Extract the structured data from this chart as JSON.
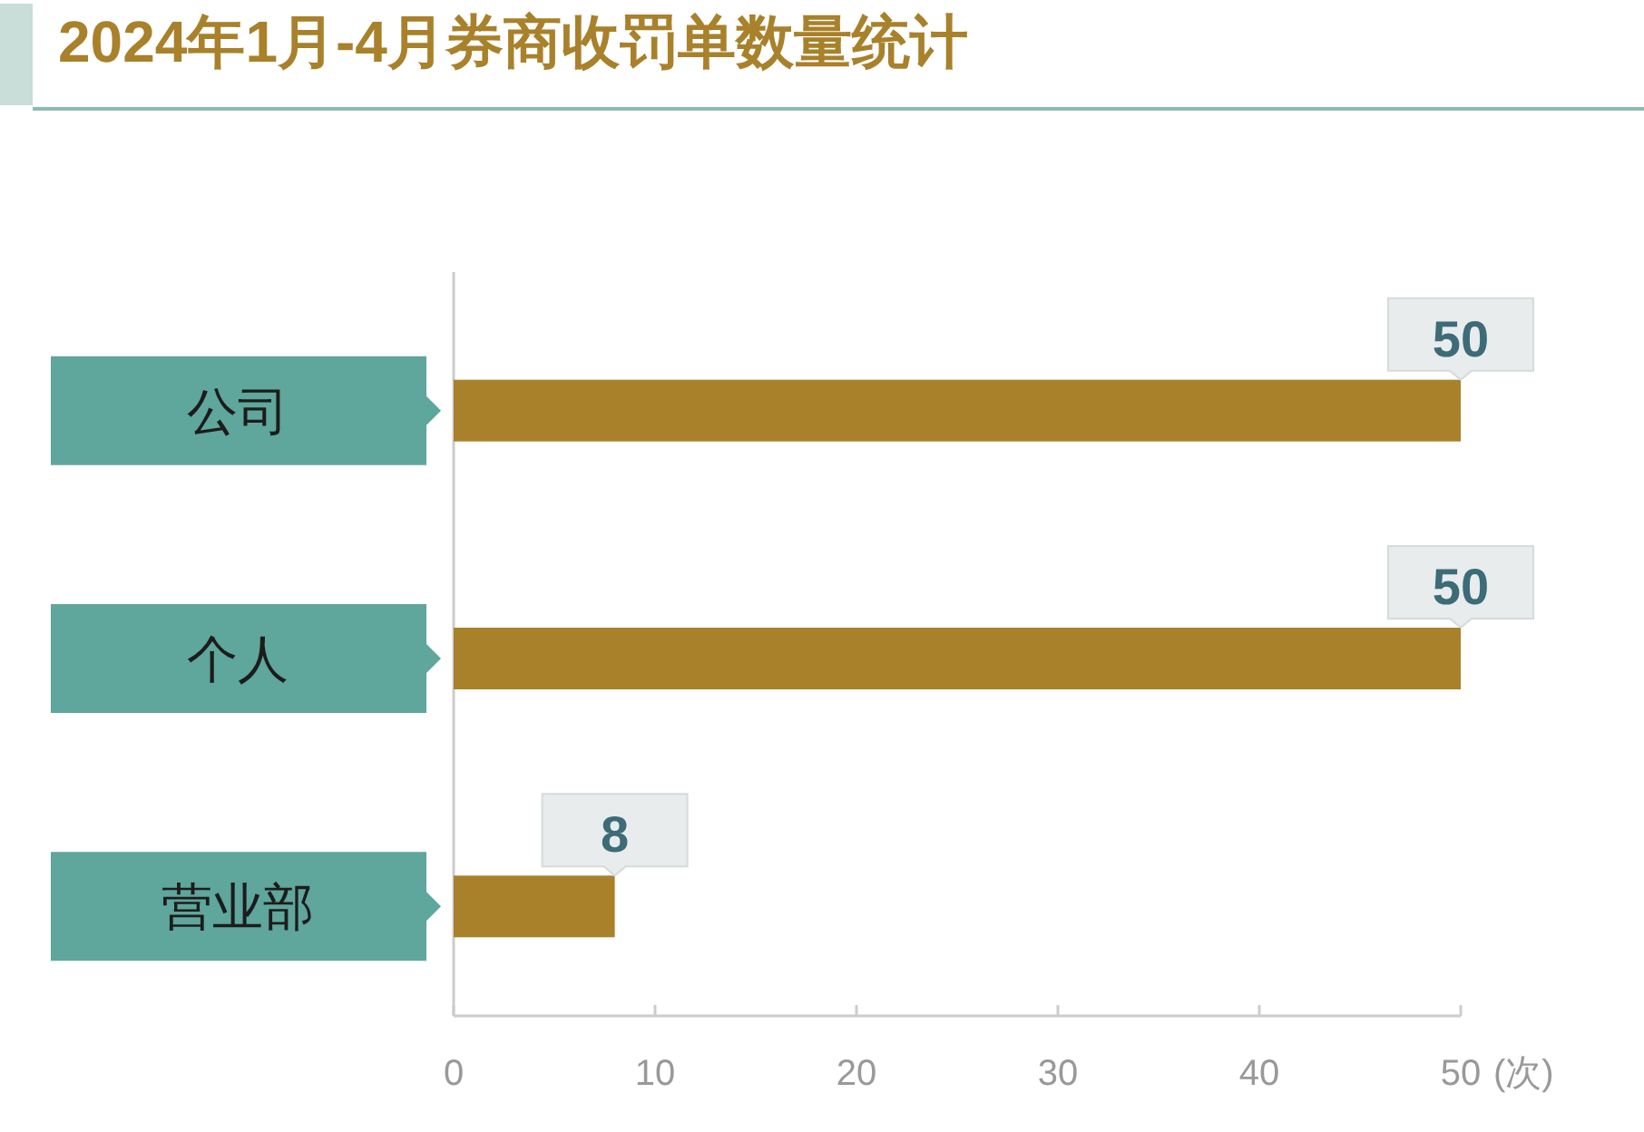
{
  "chart_data": {
    "type": "bar",
    "orientation": "horizontal",
    "title": "2024年1月-4月券商收罚单数量统计",
    "categories": [
      "公司",
      "个人",
      "营业部"
    ],
    "values": [
      50,
      50,
      8
    ],
    "color": "#a8812a",
    "xlim": [
      0,
      50
    ],
    "xticks": [
      0,
      10,
      20,
      30,
      40,
      50
    ],
    "xlabel": "(次)",
    "data_labels": true
  }
}
